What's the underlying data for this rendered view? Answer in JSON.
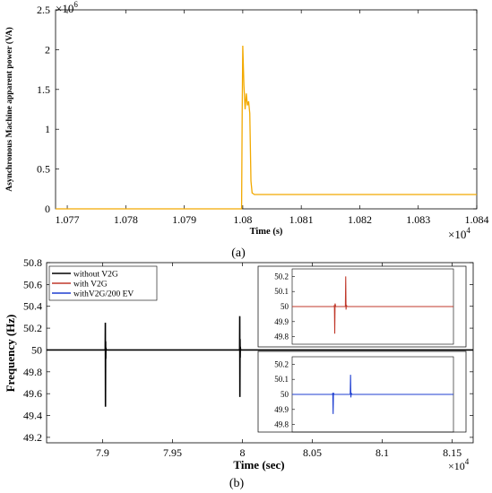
{
  "chart_data": [
    {
      "type": "line",
      "caption": "(a)",
      "xlabel": "Time (s)",
      "ylabel": "Asynchronous Machine apparent power (VA)",
      "x_exponent": "×10",
      "x_exponent_power": "4",
      "y_exponent": "×10",
      "y_exponent_power": "6",
      "xlim": [
        1.0768,
        1.084
      ],
      "ylim": [
        0,
        2.5
      ],
      "xticks": [
        "1.077",
        "1.078",
        "1.079",
        "1.08",
        "1.081",
        "1.082",
        "1.083",
        "1.084"
      ],
      "xtick_values": [
        1.077,
        1.078,
        1.079,
        1.08,
        1.081,
        1.082,
        1.083,
        1.084
      ],
      "yticks": [
        "0",
        "0.5",
        "1",
        "1.5",
        "2",
        "2.5"
      ],
      "ytick_values": [
        0,
        0.5,
        1,
        1.5,
        2,
        2.5
      ],
      "grid": false,
      "series": [
        {
          "color": "#f2a900",
          "x": [
            1.0768,
            1.07998,
            1.07999,
            1.08,
            1.08002,
            1.08004,
            1.08006,
            1.08008,
            1.0801,
            1.08012,
            1.08014,
            1.08016,
            1.0802,
            1.084
          ],
          "y": [
            0,
            0,
            1.2,
            2.05,
            1.55,
            1.25,
            1.45,
            1.3,
            1.35,
            1.2,
            0.35,
            0.2,
            0.18,
            0.18
          ]
        }
      ]
    },
    {
      "type": "line",
      "caption": "(b)",
      "xlabel": "Time (sec)",
      "ylabel": "Frequency (Hz)",
      "x_exponent": "×10",
      "x_exponent_power": "4",
      "xlim": [
        7.86,
        8.165
      ],
      "ylim": [
        49.15,
        50.8
      ],
      "xticks": [
        "7.9",
        "7.95",
        "8",
        "8.05",
        "8.1",
        "8.15"
      ],
      "xtick_values": [
        7.9,
        7.95,
        8.0,
        8.05,
        8.1,
        8.15
      ],
      "yticks": [
        "49.2",
        "49.4",
        "49.6",
        "49.8",
        "50",
        "50.2",
        "50.4",
        "50.6",
        "50.8"
      ],
      "ytick_values": [
        49.2,
        49.4,
        49.6,
        49.8,
        50,
        50.2,
        50.4,
        50.6,
        50.8
      ],
      "grid": false,
      "legend": {
        "position": "top-left",
        "entries": [
          {
            "label": "without V2G",
            "color": "#000000"
          },
          {
            "label": "with V2G",
            "color": "#c0392b"
          },
          {
            "label": "withV2G/200 EV",
            "color": "#1f3fd1"
          }
        ]
      },
      "series": [
        {
          "name": "without V2G",
          "color": "#000000",
          "x": [
            7.86,
            7.9019,
            7.902,
            7.9021,
            7.9022,
            7.9023,
            7.9024,
            7.9026,
            7.998,
            7.9981,
            7.9982,
            7.9983,
            7.9984,
            7.9985,
            7.9987,
            8.165
          ],
          "y": [
            50,
            50,
            50.25,
            49.48,
            50.08,
            49.92,
            50.02,
            50,
            50,
            50.31,
            49.57,
            50.1,
            49.93,
            50.03,
            50,
            50
          ]
        }
      ],
      "insets": [
        {
          "ylim": [
            49.75,
            50.25
          ],
          "yticks": [
            "49.8",
            "49.9",
            "50",
            "50.1",
            "50.2"
          ],
          "ytick_values": [
            49.8,
            49.9,
            50,
            50.1,
            50.2
          ],
          "series": [
            {
              "name": "with V2G",
              "color": "#c0392b",
              "x": [
                0,
                0.26,
                0.262,
                0.264,
                0.266,
                0.27,
                0.33,
                0.332,
                0.334,
                0.336,
                0.34,
                1
              ],
              "y": [
                50,
                50,
                50.01,
                49.82,
                50.02,
                50,
                50,
                50.2,
                49.98,
                50.01,
                50,
                50
              ]
            }
          ]
        },
        {
          "ylim": [
            49.75,
            50.25
          ],
          "yticks": [
            "49.8",
            "49.9",
            "50",
            "50.1",
            "50.2"
          ],
          "ytick_values": [
            49.8,
            49.9,
            50,
            50.1,
            50.2
          ],
          "series": [
            {
              "name": "withV2G/200 EV",
              "color": "#1f3fd1",
              "x": [
                0,
                0.25,
                0.252,
                0.254,
                0.256,
                0.26,
                0.36,
                0.362,
                0.364,
                0.366,
                0.37,
                1
              ],
              "y": [
                50,
                50,
                50.01,
                49.87,
                50.01,
                50,
                50,
                50.13,
                49.98,
                50.01,
                50,
                50
              ]
            }
          ]
        }
      ]
    }
  ]
}
